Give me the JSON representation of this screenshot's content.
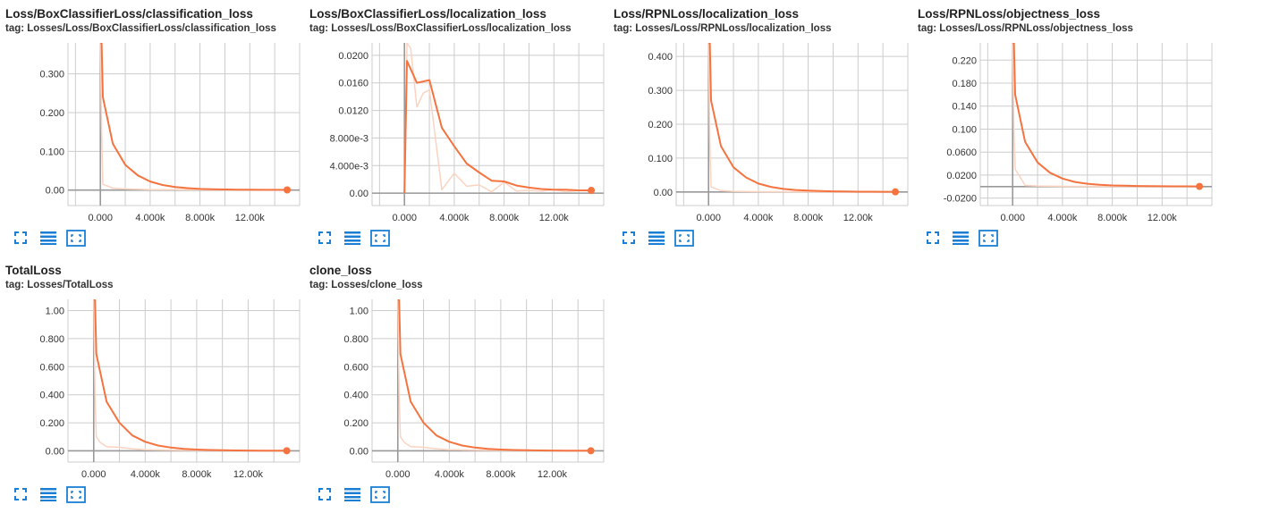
{
  "colors": {
    "series": "#f4733f",
    "series_raw": "#fbd3c1",
    "grid": "#cccccc",
    "axis": "#999999",
    "icon": "#1a7fd4"
  },
  "icons": [
    "expand-icon",
    "data-table-icon",
    "fit-domain-icon"
  ],
  "cards": [
    {
      "title": "Loss/BoxClassifierLoss/classification_loss",
      "tag": "tag: Losses/Loss/BoxClassifierLoss/classification_loss",
      "chart_data": {
        "type": "line",
        "xlim": [
          -2600,
          16000
        ],
        "ylim": [
          -0.04,
          0.38
        ],
        "x_ticks": [
          0,
          4000,
          8000,
          12000
        ],
        "x_tick_labels": [
          "0.000",
          "4.000k",
          "8.000k",
          "12.00k"
        ],
        "y_ticks": [
          0.0,
          0.1,
          0.2,
          0.3
        ],
        "y_tick_labels": [
          "0.00",
          "0.100",
          "0.200",
          "0.300"
        ],
        "grid": true,
        "series": [
          {
            "role": "smoothed",
            "x": [
              0,
              100,
              200,
              1000,
              2000,
              3000,
              4000,
              5000,
              6000,
              7000,
              8000,
              9000,
              10000,
              11000,
              12000,
              13000,
              14000,
              15000
            ],
            "y": [
              0.38,
              0.38,
              0.24,
              0.12,
              0.065,
              0.038,
              0.022,
              0.013,
              0.008,
              0.005,
              0.003,
              0.002,
              0.0015,
              0.001,
              0.0008,
              0.0006,
              0.0005,
              0.0004
            ]
          },
          {
            "role": "raw",
            "x": [
              0,
              100,
              200,
              1000,
              2000,
              3000,
              4000,
              6000,
              8000,
              10000,
              12000,
              15000
            ],
            "y": [
              0.38,
              0.15,
              0.015,
              0.005,
              0.003,
              0.002,
              0.001,
              0.0008,
              0.0005,
              0.0004,
              0.0003,
              0.0002
            ]
          }
        ]
      }
    },
    {
      "title": "Loss/BoxClassifierLoss/localization_loss",
      "tag": "tag: Losses/Loss/BoxClassifierLoss/localization_loss",
      "chart_data": {
        "type": "line",
        "xlim": [
          -2600,
          16000
        ],
        "ylim": [
          -0.0018,
          0.0218
        ],
        "x_ticks": [
          0,
          4000,
          8000,
          12000
        ],
        "x_tick_labels": [
          "0.000",
          "4.000k",
          "8.000k",
          "12.00k"
        ],
        "y_ticks": [
          0.0,
          0.004,
          0.008,
          0.012,
          0.016,
          0.02
        ],
        "y_tick_labels": [
          "0.00",
          "4.000e-3",
          "8.000e-3",
          "0.0120",
          "0.0160",
          "0.0200"
        ],
        "grid": true,
        "series": [
          {
            "role": "smoothed",
            "x": [
              0,
              200,
              1000,
              2000,
              3000,
              4000,
              5000,
              6000,
              7000,
              8000,
              9000,
              10000,
              11000,
              12000,
              13000,
              14000,
              15000
            ],
            "y": [
              0.0,
              0.0192,
              0.016,
              0.0164,
              0.0095,
              0.0068,
              0.0043,
              0.003,
              0.0018,
              0.0017,
              0.0011,
              0.0008,
              0.0006,
              0.0005,
              0.0005,
              0.0004,
              0.0004
            ]
          },
          {
            "role": "raw",
            "x": [
              0,
              200,
              500,
              1000,
              1500,
              2000,
              3000,
              4000,
              5000,
              6000,
              7000,
              8000,
              9000,
              10000,
              11000,
              12000,
              13000,
              14000,
              15000
            ],
            "y": [
              0.0,
              0.0218,
              0.021,
              0.0125,
              0.0145,
              0.015,
              0.0005,
              0.0029,
              0.001,
              0.0012,
              0.0002,
              0.0016,
              0.0003,
              0.0004,
              0.0003,
              0.0005,
              0.0002,
              0.0004,
              0.0003
            ]
          }
        ]
      }
    },
    {
      "title": "Loss/RPNLoss/localization_loss",
      "tag": "tag: Losses/Loss/RPNLoss/localization_loss",
      "chart_data": {
        "type": "line",
        "xlim": [
          -2600,
          16000
        ],
        "ylim": [
          -0.04,
          0.44
        ],
        "x_ticks": [
          0,
          4000,
          8000,
          12000
        ],
        "x_tick_labels": [
          "0.000",
          "4.000k",
          "8.000k",
          "12.00k"
        ],
        "y_ticks": [
          0.0,
          0.1,
          0.2,
          0.3,
          0.4
        ],
        "y_tick_labels": [
          "0.00",
          "0.100",
          "0.200",
          "0.300",
          "0.400"
        ],
        "grid": true,
        "series": [
          {
            "role": "smoothed",
            "x": [
              0,
              100,
              200,
              1000,
              2000,
              3000,
              4000,
              5000,
              6000,
              7000,
              8000,
              9000,
              10000,
              11000,
              12000,
              13000,
              14000,
              15000
            ],
            "y": [
              0.44,
              0.44,
              0.27,
              0.135,
              0.073,
              0.043,
              0.025,
              0.015,
              0.009,
              0.006,
              0.004,
              0.003,
              0.002,
              0.0015,
              0.001,
              0.0008,
              0.0006,
              0.0005
            ]
          },
          {
            "role": "raw",
            "x": [
              0,
              100,
              200,
              1000,
              2000,
              4000,
              8000,
              15000
            ],
            "y": [
              0.44,
              0.15,
              0.015,
              0.004,
              0.002,
              0.001,
              0.0005,
              0.0003
            ]
          }
        ]
      }
    },
    {
      "title": "Loss/RPNLoss/objectness_loss",
      "tag": "tag: Losses/Loss/RPNLoss/objectness_loss",
      "chart_data": {
        "type": "line",
        "xlim": [
          -2600,
          16000
        ],
        "ylim": [
          -0.033,
          0.25
        ],
        "x_ticks": [
          0,
          4000,
          8000,
          12000
        ],
        "x_tick_labels": [
          "0.000",
          "4.000k",
          "8.000k",
          "12.00k"
        ],
        "y_ticks": [
          -0.02,
          0.02,
          0.06,
          0.1,
          0.14,
          0.18,
          0.22
        ],
        "y_tick_labels": [
          "-0.0200",
          "0.0200",
          "0.0600",
          "0.100",
          "0.140",
          "0.180",
          "0.220"
        ],
        "grid": true,
        "series": [
          {
            "role": "smoothed",
            "x": [
              0,
              100,
              200,
              1000,
              2000,
              3000,
              4000,
              5000,
              6000,
              7000,
              8000,
              9000,
              10000,
              11000,
              12000,
              13000,
              14000,
              15000
            ],
            "y": [
              0.25,
              0.25,
              0.16,
              0.078,
              0.042,
              0.024,
              0.014,
              0.008,
              0.005,
              0.003,
              0.002,
              0.0015,
              0.001,
              0.0008,
              0.0006,
              0.0005,
              0.0004,
              0.0003
            ]
          },
          {
            "role": "raw",
            "x": [
              0,
              100,
              200,
              500,
              1000,
              2000,
              4000,
              8000,
              15000
            ],
            "y": [
              0.25,
              0.1,
              0.03,
              0.02,
              0.002,
              0.001,
              0.0005,
              0.0003,
              0.0002
            ]
          }
        ]
      }
    },
    {
      "title": "TotalLoss",
      "tag": "tag: Losses/TotalLoss",
      "chart_data": {
        "type": "line",
        "xlim": [
          -2000,
          16000
        ],
        "ylim": [
          -0.08,
          1.08
        ],
        "x_ticks": [
          0,
          4000,
          8000,
          12000
        ],
        "x_tick_labels": [
          "0.000",
          "4.000k",
          "8.000k",
          "12.00k"
        ],
        "y_ticks": [
          0.0,
          0.2,
          0.4,
          0.6,
          0.8,
          1.0
        ],
        "y_tick_labels": [
          "0.00",
          "0.200",
          "0.400",
          "0.600",
          "0.800",
          "1.00"
        ],
        "grid": true,
        "series": [
          {
            "role": "smoothed",
            "x": [
              0,
              100,
              200,
              1000,
              2000,
              3000,
              4000,
              5000,
              6000,
              7000,
              8000,
              9000,
              10000,
              11000,
              12000,
              13000,
              14000,
              15000
            ],
            "y": [
              1.08,
              1.08,
              0.69,
              0.35,
              0.2,
              0.11,
              0.065,
              0.038,
              0.023,
              0.014,
              0.009,
              0.006,
              0.004,
              0.003,
              0.002,
              0.0015,
              0.001,
              0.0008
            ]
          },
          {
            "role": "raw",
            "x": [
              0,
              100,
              200,
              500,
              1000,
              2000,
              3000,
              4000,
              6000,
              8000,
              10000,
              12000,
              15000
            ],
            "y": [
              1.08,
              0.4,
              0.1,
              0.06,
              0.03,
              0.025,
              0.015,
              0.008,
              0.005,
              0.003,
              0.002,
              0.0015,
              0.001
            ]
          }
        ]
      }
    },
    {
      "title": "clone_loss",
      "tag": "tag: Losses/clone_loss",
      "chart_data": {
        "type": "line",
        "xlim": [
          -2000,
          16000
        ],
        "ylim": [
          -0.08,
          1.08
        ],
        "x_ticks": [
          0,
          4000,
          8000,
          12000
        ],
        "x_tick_labels": [
          "0.000",
          "4.000k",
          "8.000k",
          "12.00k"
        ],
        "y_ticks": [
          0.0,
          0.2,
          0.4,
          0.6,
          0.8,
          1.0
        ],
        "y_tick_labels": [
          "0.00",
          "0.200",
          "0.400",
          "0.600",
          "0.800",
          "1.00"
        ],
        "grid": true,
        "series": [
          {
            "role": "smoothed",
            "x": [
              0,
              100,
              200,
              1000,
              2000,
              3000,
              4000,
              5000,
              6000,
              7000,
              8000,
              9000,
              10000,
              11000,
              12000,
              13000,
              14000,
              15000
            ],
            "y": [
              1.08,
              1.08,
              0.69,
              0.35,
              0.2,
              0.11,
              0.065,
              0.038,
              0.023,
              0.014,
              0.009,
              0.006,
              0.004,
              0.003,
              0.002,
              0.0015,
              0.001,
              0.0008
            ]
          },
          {
            "role": "raw",
            "x": [
              0,
              100,
              200,
              500,
              1000,
              2000,
              3000,
              4000,
              6000,
              8000,
              10000,
              12000,
              15000
            ],
            "y": [
              1.08,
              0.4,
              0.1,
              0.06,
              0.03,
              0.025,
              0.015,
              0.008,
              0.005,
              0.003,
              0.002,
              0.0015,
              0.001
            ]
          }
        ]
      }
    }
  ]
}
